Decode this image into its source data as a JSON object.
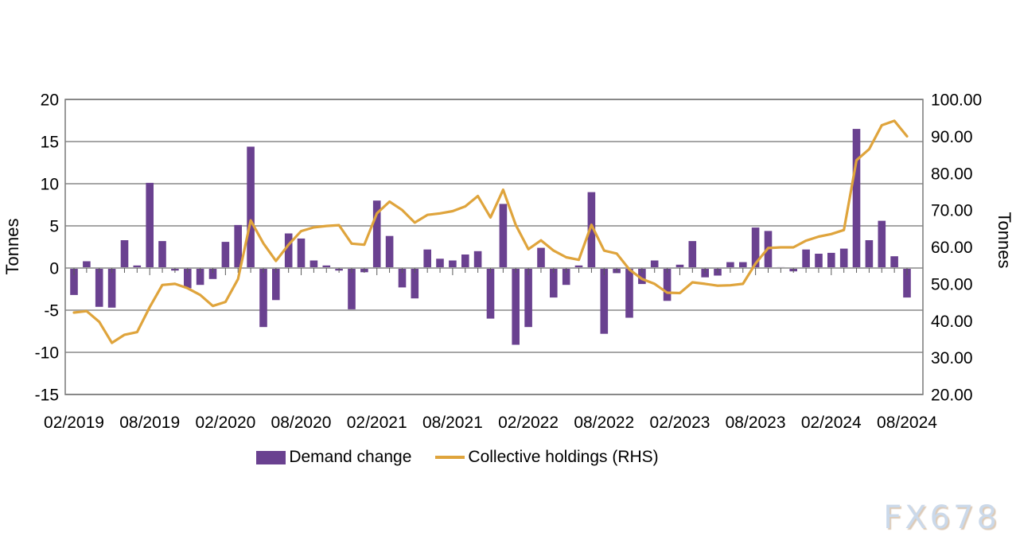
{
  "watermark": "FX678",
  "legend": {
    "bar_label": "Demand change",
    "line_label": "Collective holdings (RHS)"
  },
  "left_axis": {
    "title": "Tonnes",
    "ticks": [
      "20",
      "15",
      "10",
      "5",
      "0",
      "-5",
      "-10",
      "-15"
    ]
  },
  "right_axis": {
    "title": "Tonnes",
    "ticks": [
      "100.00",
      "90.00",
      "80.00",
      "70.00",
      "60.00",
      "50.00",
      "40.00",
      "30.00",
      "20.00"
    ]
  },
  "x_axis": {
    "labels": [
      "02/2019",
      "08/2019",
      "02/2020",
      "08/2020",
      "02/2021",
      "08/2021",
      "02/2022",
      "08/2022",
      "02/2023",
      "08/2023",
      "02/2024",
      "08/2024"
    ]
  },
  "colors": {
    "bar": "#6a4190",
    "line": "#dfa43c",
    "grid": "#a6a6a6",
    "frame": "#808080",
    "tick": "#595959",
    "text": "#000000",
    "watermark": "#cbd9ea"
  },
  "chart_data": {
    "type": "bar+line combo",
    "grid": true,
    "legend_position": "bottom",
    "left_ylim": [
      -15,
      20
    ],
    "right_ylim": [
      20,
      100
    ],
    "left_ylabel": "Tonnes",
    "right_ylabel": "Tonnes",
    "categories": [
      "02/2019",
      "03/2019",
      "04/2019",
      "05/2019",
      "06/2019",
      "07/2019",
      "08/2019",
      "09/2019",
      "10/2019",
      "11/2019",
      "12/2019",
      "01/2020",
      "02/2020",
      "03/2020",
      "04/2020",
      "05/2020",
      "06/2020",
      "07/2020",
      "08/2020",
      "09/2020",
      "10/2020",
      "11/2020",
      "12/2020",
      "01/2021",
      "02/2021",
      "03/2021",
      "04/2021",
      "05/2021",
      "06/2021",
      "07/2021",
      "08/2021",
      "09/2021",
      "10/2021",
      "11/2021",
      "12/2021",
      "01/2022",
      "02/2022",
      "03/2022",
      "04/2022",
      "05/2022",
      "06/2022",
      "07/2022",
      "08/2022",
      "09/2022",
      "10/2022",
      "11/2022",
      "12/2022",
      "01/2023",
      "02/2023",
      "03/2023",
      "04/2023",
      "05/2023",
      "06/2023",
      "07/2023",
      "08/2023",
      "09/2023",
      "10/2023",
      "11/2023",
      "12/2023",
      "01/2024",
      "02/2024",
      "03/2024",
      "04/2024",
      "05/2024",
      "06/2024",
      "07/2024",
      "08/2024"
    ],
    "series": [
      {
        "name": "Demand change",
        "type": "bar",
        "axis": "left",
        "values": [
          -3.2,
          0.8,
          -4.6,
          -4.7,
          3.3,
          0.3,
          10.1,
          3.2,
          -0.3,
          -2.4,
          -2.0,
          -1.3,
          3.1,
          5.1,
          14.4,
          -7.0,
          -3.8,
          4.1,
          3.5,
          0.9,
          0.3,
          -0.3,
          -4.9,
          -0.5,
          8.0,
          3.8,
          -2.3,
          -3.6,
          2.2,
          1.1,
          0.9,
          1.6,
          2.0,
          -6.0,
          7.6,
          -9.1,
          -7.0,
          2.4,
          -3.5,
          -2.0,
          0.3,
          9.0,
          -7.8,
          -0.6,
          -5.9,
          -1.9,
          0.9,
          -3.9,
          0.4,
          3.2,
          -1.1,
          -0.9,
          0.7,
          0.7,
          4.8,
          4.4,
          0.1,
          -0.4,
          2.2,
          1.7,
          1.8,
          2.3,
          16.5,
          3.3,
          5.6,
          1.4,
          -3.5
        ]
      },
      {
        "name": "Collective holdings (RHS)",
        "type": "line",
        "axis": "right",
        "values": [
          42.2,
          42.6,
          39.7,
          34.0,
          36.2,
          36.9,
          43.7,
          49.7,
          50.0,
          48.8,
          47.0,
          44.0,
          45.1,
          51.3,
          67.2,
          61.0,
          56.2,
          60.6,
          64.3,
          65.3,
          65.7,
          65.9,
          60.9,
          60.6,
          69.1,
          72.3,
          70.0,
          66.6,
          68.7,
          69.1,
          69.7,
          71.0,
          73.8,
          68.0,
          75.5,
          66.0,
          59.4,
          61.8,
          59.0,
          57.2,
          56.5,
          66.0,
          59.0,
          58.2,
          53.9,
          51.3,
          50.0,
          47.6,
          47.5,
          50.4,
          50.0,
          49.5,
          49.6,
          50.0,
          55.5,
          59.7,
          59.9,
          59.9,
          61.7,
          62.8,
          63.5,
          64.6,
          83.5,
          86.5,
          93.0,
          94.2,
          90.0
        ]
      }
    ]
  }
}
